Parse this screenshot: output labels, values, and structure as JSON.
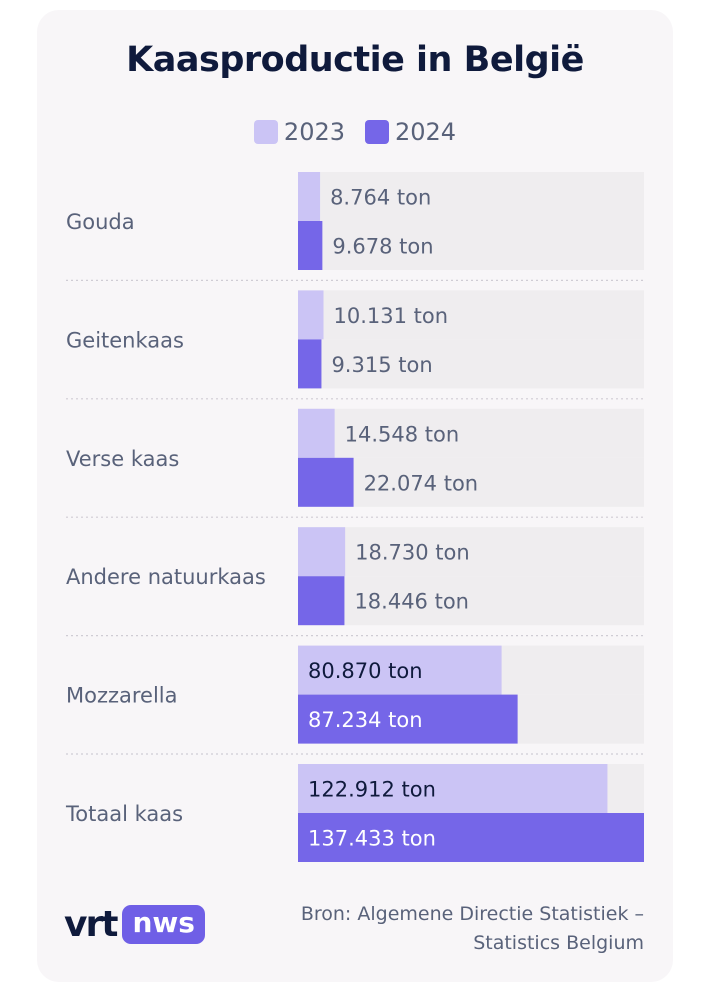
{
  "chart_data": {
    "type": "bar",
    "orientation": "horizontal",
    "title": "Kaasproductie in België",
    "categories": [
      "Gouda",
      "Geitenkaas",
      "Verse kaas",
      "Andere natuurkaas",
      "Mozzarella",
      "Totaal kaas"
    ],
    "series": [
      {
        "name": "2023",
        "color": "#cbc4f5",
        "values": [
          8764,
          10131,
          14548,
          18730,
          80870,
          122912
        ],
        "labels": [
          "8.764 ton",
          "10.131 ton",
          "14.548 ton",
          "18.730 ton",
          "80.870 ton",
          "122.912 ton"
        ]
      },
      {
        "name": "2024",
        "color": "#7566e8",
        "values": [
          9678,
          9315,
          22074,
          18446,
          87234,
          137433
        ],
        "labels": [
          "9.678 ton",
          "9.315 ton",
          "22.074 ton",
          "18.446 ton",
          "87.234 ton",
          "137.433 ton"
        ]
      }
    ],
    "xlim": [
      0,
      137433
    ],
    "grid": false,
    "legend": "top-center"
  },
  "branding": {
    "vrt": "vrt",
    "nws": "nws"
  },
  "source_line1": "Bron: Algemene Directie Statistiek –",
  "source_line2": "Statistics Belgium",
  "colors": {
    "track": "#efedef",
    "label_dark": "#0f1a3c",
    "label_mid": "#59627a",
    "label_light_on_dark": "#ffffff"
  }
}
